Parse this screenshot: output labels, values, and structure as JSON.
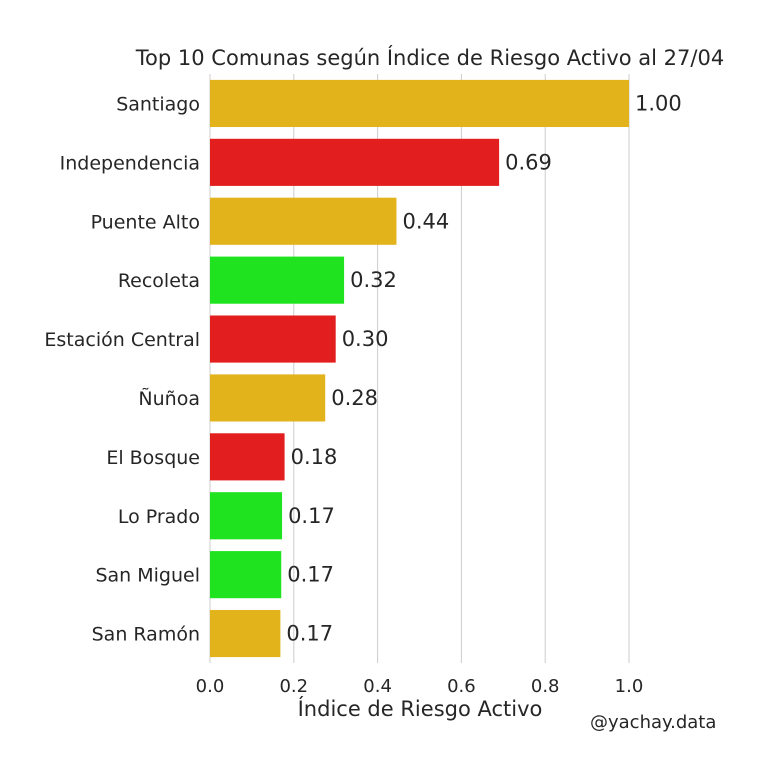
{
  "chart_data": {
    "type": "bar",
    "orientation": "horizontal",
    "title": "Top 10 Comunas según Índice de Riesgo Activo al 27/04",
    "xlabel": "Índice de Riesgo Activo",
    "ylabel": "",
    "xlim": [
      0,
      1.0
    ],
    "xticks": [
      "0.0",
      "0.2",
      "0.4",
      "0.6",
      "0.8",
      "1.0"
    ],
    "grid": "vertical",
    "categories": [
      "Santiago",
      "Independencia",
      "Puente Alto",
      "Recoleta",
      "Estación Central",
      "Ñuñoa",
      "El Bosque",
      "Lo Prado",
      "San Miguel",
      "San Ramón"
    ],
    "values": [
      1.0,
      0.69,
      0.445,
      0.32,
      0.3,
      0.275,
      0.178,
      0.172,
      0.17,
      0.168
    ],
    "labels": [
      "1.00",
      "0.69",
      "0.44",
      "0.32",
      "0.30",
      "0.28",
      "0.18",
      "0.17",
      "0.17",
      "0.17"
    ],
    "bar_colors": [
      "#e3b31b",
      "#e31e1e",
      "#e3b31b",
      "#1ee31e",
      "#e31e1e",
      "#e3b31b",
      "#e31e1e",
      "#1ee31e",
      "#1ee31e",
      "#e3b31b"
    ]
  },
  "credit": "@yachay.data"
}
